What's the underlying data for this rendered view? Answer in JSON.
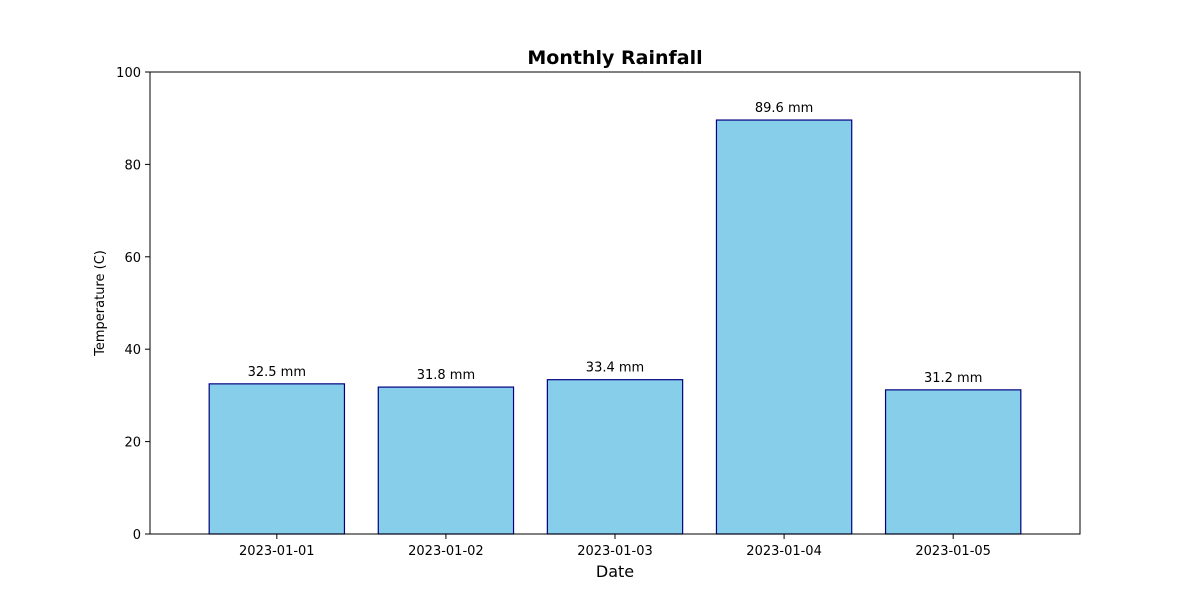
{
  "chart_data": {
    "type": "bar",
    "title": "Monthly Rainfall",
    "xlabel": "Date",
    "ylabel": "Temperature (C)",
    "categories": [
      "2023-01-01",
      "2023-01-02",
      "2023-01-03",
      "2023-01-04",
      "2023-01-05"
    ],
    "values": [
      32.5,
      31.8,
      33.4,
      89.6,
      31.2
    ],
    "data_labels": [
      "32.5 mm",
      "31.8 mm",
      "33.4 mm",
      "89.6 mm",
      "31.2 mm"
    ],
    "ylim": [
      0,
      100
    ],
    "yticks": [
      0,
      20,
      40,
      60,
      80,
      100
    ],
    "grid": false,
    "colors": {
      "bar_fill": "#87ceeb",
      "bar_edge": "#000080",
      "axes": "#000000"
    }
  }
}
